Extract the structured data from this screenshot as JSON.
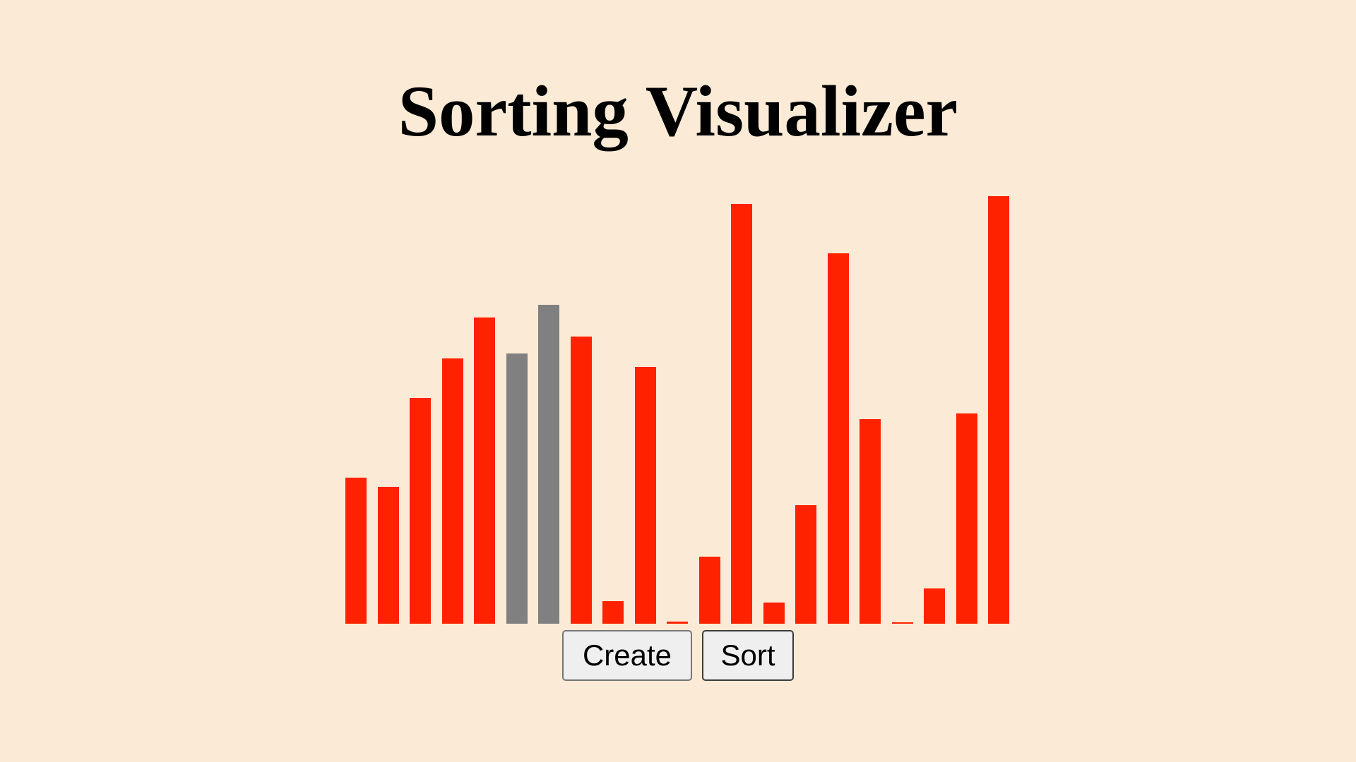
{
  "page": {
    "title": "Sorting Visualizer"
  },
  "controls": {
    "create_label": "Create",
    "sort_label": "Sort"
  },
  "colors": {
    "background": "#fbebd6",
    "bar_default": "#ff2200",
    "bar_compare": "#808080"
  },
  "chart_data": {
    "type": "bar",
    "values": [
      206,
      193,
      318,
      374,
      431,
      381,
      449,
      404,
      32,
      362,
      3,
      94,
      591,
      30,
      167,
      522,
      288,
      0,
      50,
      296,
      602
    ],
    "highlighted_indices": [
      5,
      6
    ],
    "ylim": [
      0,
      620
    ]
  }
}
